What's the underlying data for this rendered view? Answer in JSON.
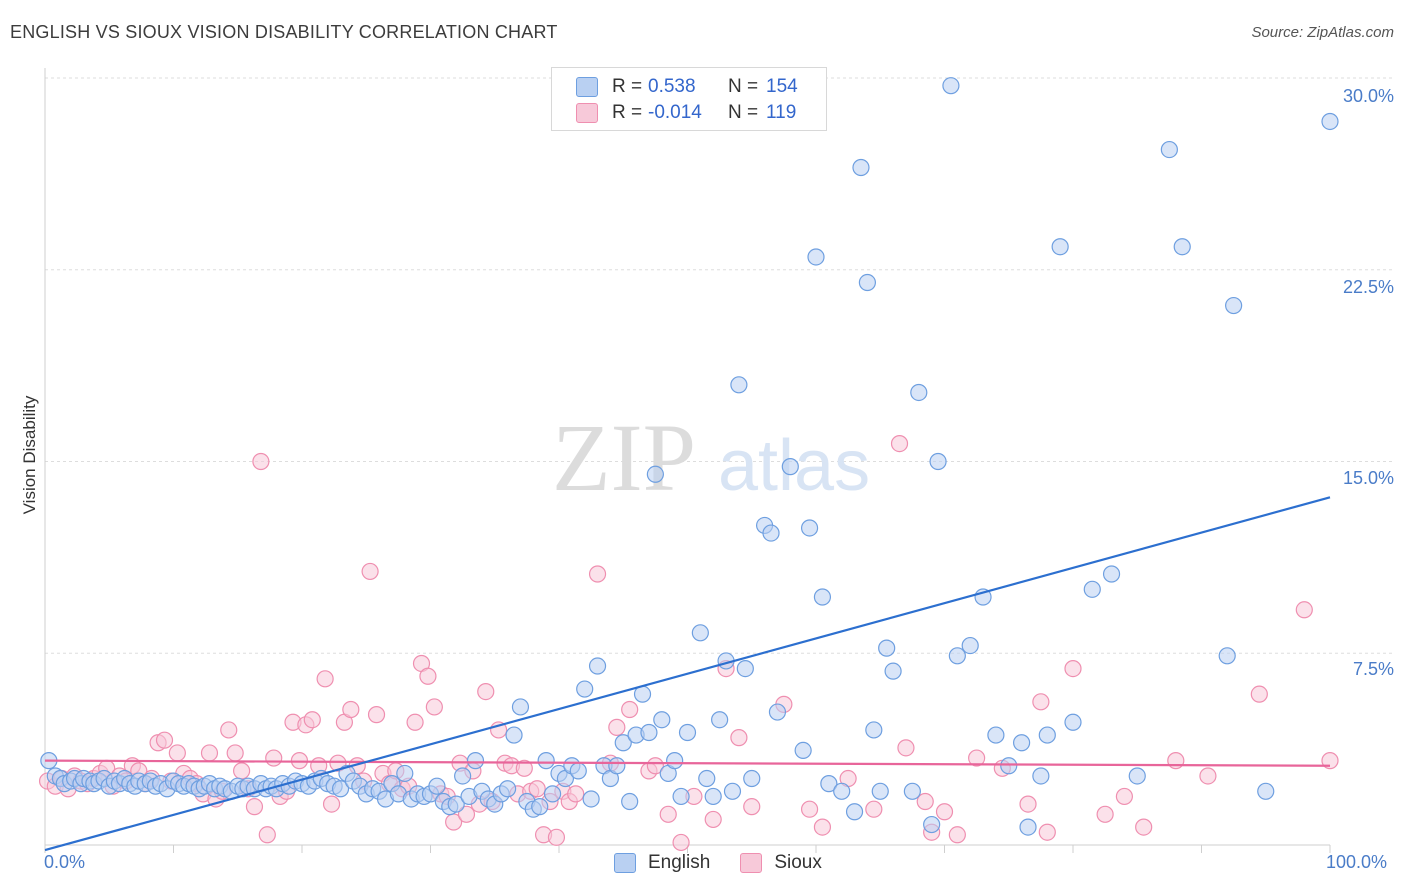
{
  "title": "ENGLISH VS SIOUX VISION DISABILITY CORRELATION CHART",
  "source": "Source: ZipAtlas.com",
  "watermark": {
    "part1": "ZIP",
    "part2": "atlas"
  },
  "legend_top": [
    {
      "r_label": "R =",
      "r_value": "0.538",
      "n_label": "N =",
      "n_value": "154"
    },
    {
      "r_label": "R =",
      "r_value": "-0.014",
      "n_label": "N =",
      "n_value": "119"
    }
  ],
  "colors": {
    "english": "#6e9fe0",
    "english_fill": "#b9d0f2",
    "sioux": "#ef8fb0",
    "sioux_fill": "#f7c9d9",
    "english_line": "#2c6fcf",
    "sioux_line": "#e8659a",
    "tick_label": "#4a7cc8"
  },
  "chart_data": {
    "type": "scatter",
    "xlabel": "",
    "ylabel": "Vision Disability",
    "xlim": [
      0,
      100
    ],
    "ylim": [
      0,
      30
    ],
    "x_tick_labels": [
      "0.0%",
      "100.0%"
    ],
    "y_tick_labels": [
      "7.5%",
      "15.0%",
      "22.5%",
      "30.0%"
    ],
    "y_ticks": [
      7.5,
      15.0,
      22.5,
      30.0
    ],
    "series": [
      {
        "name": "English",
        "trend": {
          "x": [
            0,
            100
          ],
          "y": [
            -0.2,
            13.6
          ]
        },
        "points": [
          [
            0.3,
            3.3
          ],
          [
            0.8,
            2.7
          ],
          [
            1.2,
            2.6
          ],
          [
            1.5,
            2.4
          ],
          [
            2.0,
            2.5
          ],
          [
            2.3,
            2.6
          ],
          [
            2.8,
            2.4
          ],
          [
            3.0,
            2.6
          ],
          [
            3.5,
            2.5
          ],
          [
            3.8,
            2.4
          ],
          [
            4.2,
            2.5
          ],
          [
            4.6,
            2.6
          ],
          [
            5.0,
            2.3
          ],
          [
            5.4,
            2.5
          ],
          [
            5.8,
            2.4
          ],
          [
            6.2,
            2.6
          ],
          [
            6.6,
            2.4
          ],
          [
            7.0,
            2.3
          ],
          [
            7.3,
            2.5
          ],
          [
            7.8,
            2.4
          ],
          [
            8.2,
            2.5
          ],
          [
            8.6,
            2.3
          ],
          [
            9.0,
            2.4
          ],
          [
            9.5,
            2.2
          ],
          [
            10.0,
            2.5
          ],
          [
            10.4,
            2.4
          ],
          [
            10.8,
            2.3
          ],
          [
            11.2,
            2.4
          ],
          [
            11.6,
            2.3
          ],
          [
            12.0,
            2.2
          ],
          [
            12.4,
            2.3
          ],
          [
            12.8,
            2.4
          ],
          [
            13.2,
            2.2
          ],
          [
            13.6,
            2.3
          ],
          [
            14.0,
            2.2
          ],
          [
            14.5,
            2.1
          ],
          [
            15.0,
            2.3
          ],
          [
            15.4,
            2.2
          ],
          [
            15.8,
            2.3
          ],
          [
            16.3,
            2.2
          ],
          [
            16.8,
            2.4
          ],
          [
            17.2,
            2.2
          ],
          [
            17.6,
            2.3
          ],
          [
            18.0,
            2.2
          ],
          [
            18.5,
            2.4
          ],
          [
            19.0,
            2.3
          ],
          [
            19.5,
            2.5
          ],
          [
            20.0,
            2.4
          ],
          [
            20.5,
            2.3
          ],
          [
            21.0,
            2.5
          ],
          [
            21.5,
            2.6
          ],
          [
            22.0,
            2.4
          ],
          [
            22.5,
            2.3
          ],
          [
            23.0,
            2.2
          ],
          [
            23.5,
            2.8
          ],
          [
            24.0,
            2.5
          ],
          [
            24.5,
            2.3
          ],
          [
            25.0,
            2.0
          ],
          [
            25.5,
            2.2
          ],
          [
            26.0,
            2.1
          ],
          [
            26.5,
            1.8
          ],
          [
            27.0,
            2.4
          ],
          [
            27.5,
            2.0
          ],
          [
            28.0,
            2.8
          ],
          [
            28.5,
            1.8
          ],
          [
            29.0,
            2.0
          ],
          [
            29.5,
            1.9
          ],
          [
            30.0,
            2.0
          ],
          [
            30.5,
            2.3
          ],
          [
            31.0,
            1.7
          ],
          [
            31.5,
            1.5
          ],
          [
            32.0,
            1.6
          ],
          [
            32.5,
            2.7
          ],
          [
            33.0,
            1.9
          ],
          [
            33.5,
            3.3
          ],
          [
            34.0,
            2.1
          ],
          [
            34.5,
            1.8
          ],
          [
            35.0,
            1.6
          ],
          [
            35.5,
            2.0
          ],
          [
            36.0,
            2.2
          ],
          [
            36.5,
            4.3
          ],
          [
            37.0,
            5.4
          ],
          [
            37.5,
            1.7
          ],
          [
            38.0,
            1.4
          ],
          [
            38.5,
            1.5
          ],
          [
            39.0,
            3.3
          ],
          [
            39.5,
            2.0
          ],
          [
            40.0,
            2.8
          ],
          [
            40.5,
            2.6
          ],
          [
            41.0,
            3.1
          ],
          [
            41.5,
            2.9
          ],
          [
            42.0,
            6.1
          ],
          [
            42.5,
            1.8
          ],
          [
            43.0,
            7.0
          ],
          [
            43.5,
            3.1
          ],
          [
            44.0,
            2.6
          ],
          [
            44.5,
            3.1
          ],
          [
            45.0,
            4.0
          ],
          [
            45.5,
            1.7
          ],
          [
            46.0,
            4.3
          ],
          [
            46.5,
            5.9
          ],
          [
            47.0,
            4.4
          ],
          [
            47.5,
            14.5
          ],
          [
            48.0,
            4.9
          ],
          [
            48.5,
            2.8
          ],
          [
            49.0,
            3.3
          ],
          [
            49.5,
            1.9
          ],
          [
            50.0,
            4.4
          ],
          [
            51.0,
            8.3
          ],
          [
            51.5,
            2.6
          ],
          [
            52.0,
            1.9
          ],
          [
            52.5,
            4.9
          ],
          [
            53.0,
            7.2
          ],
          [
            53.5,
            2.1
          ],
          [
            54.0,
            18.0
          ],
          [
            54.5,
            6.9
          ],
          [
            55.0,
            2.6
          ],
          [
            56.0,
            12.5
          ],
          [
            56.5,
            12.2
          ],
          [
            57.0,
            5.2
          ],
          [
            58.0,
            14.8
          ],
          [
            59.0,
            3.7
          ],
          [
            59.5,
            12.4
          ],
          [
            60.0,
            23.0
          ],
          [
            60.5,
            9.7
          ],
          [
            61.0,
            2.4
          ],
          [
            62.0,
            2.1
          ],
          [
            63.0,
            1.3
          ],
          [
            63.5,
            26.5
          ],
          [
            64.0,
            22.0
          ],
          [
            64.5,
            4.5
          ],
          [
            65.0,
            2.1
          ],
          [
            65.5,
            7.7
          ],
          [
            66.0,
            6.8
          ],
          [
            67.5,
            2.1
          ],
          [
            68.0,
            17.7
          ],
          [
            69.0,
            0.8
          ],
          [
            69.5,
            15.0
          ],
          [
            70.5,
            29.7
          ],
          [
            71.0,
            7.4
          ],
          [
            72.0,
            7.8
          ],
          [
            73.0,
            9.7
          ],
          [
            74.0,
            4.3
          ],
          [
            75.0,
            3.1
          ],
          [
            76.0,
            4.0
          ],
          [
            76.5,
            0.7
          ],
          [
            77.5,
            2.7
          ],
          [
            78.0,
            4.3
          ],
          [
            79.0,
            23.4
          ],
          [
            80.0,
            4.8
          ],
          [
            81.5,
            10.0
          ],
          [
            83.0,
            10.6
          ],
          [
            85.0,
            2.7
          ],
          [
            87.5,
            27.2
          ],
          [
            88.5,
            23.4
          ],
          [
            92.0,
            7.4
          ],
          [
            92.5,
            21.1
          ],
          [
            95.0,
            2.1
          ],
          [
            100.0,
            28.3
          ]
        ]
      },
      {
        "name": "Sioux",
        "trend": {
          "x": [
            0,
            100
          ],
          "y": [
            3.3,
            3.1
          ]
        },
        "points": [
          [
            0.2,
            2.5
          ],
          [
            0.8,
            2.3
          ],
          [
            1.3,
            2.6
          ],
          [
            1.8,
            2.2
          ],
          [
            2.3,
            2.7
          ],
          [
            2.8,
            2.5
          ],
          [
            3.3,
            2.4
          ],
          [
            3.8,
            2.6
          ],
          [
            4.3,
            2.8
          ],
          [
            4.8,
            3.0
          ],
          [
            5.3,
            2.3
          ],
          [
            5.8,
            2.7
          ],
          [
            6.3,
            2.5
          ],
          [
            6.8,
            3.1
          ],
          [
            7.3,
            2.9
          ],
          [
            7.8,
            2.4
          ],
          [
            8.3,
            2.6
          ],
          [
            8.8,
            4.0
          ],
          [
            9.3,
            4.1
          ],
          [
            9.8,
            2.5
          ],
          [
            10.3,
            3.6
          ],
          [
            10.8,
            2.8
          ],
          [
            11.3,
            2.6
          ],
          [
            11.8,
            2.4
          ],
          [
            12.3,
            2.0
          ],
          [
            12.8,
            3.6
          ],
          [
            13.3,
            1.8
          ],
          [
            13.8,
            2.1
          ],
          [
            14.3,
            4.5
          ],
          [
            14.8,
            3.6
          ],
          [
            15.3,
            2.9
          ],
          [
            15.8,
            2.2
          ],
          [
            16.3,
            1.5
          ],
          [
            16.8,
            15.0
          ],
          [
            17.3,
            0.4
          ],
          [
            17.8,
            3.4
          ],
          [
            18.3,
            1.9
          ],
          [
            18.8,
            2.1
          ],
          [
            19.3,
            4.8
          ],
          [
            19.8,
            3.3
          ],
          [
            20.3,
            4.7
          ],
          [
            20.8,
            4.9
          ],
          [
            21.3,
            3.1
          ],
          [
            21.8,
            6.5
          ],
          [
            22.3,
            1.6
          ],
          [
            22.8,
            3.2
          ],
          [
            23.3,
            4.8
          ],
          [
            23.8,
            5.3
          ],
          [
            24.3,
            3.1
          ],
          [
            24.8,
            2.5
          ],
          [
            25.3,
            10.7
          ],
          [
            25.8,
            5.1
          ],
          [
            26.3,
            2.8
          ],
          [
            26.8,
            2.4
          ],
          [
            27.3,
            2.9
          ],
          [
            27.8,
            2.2
          ],
          [
            28.3,
            2.3
          ],
          [
            28.8,
            4.8
          ],
          [
            29.3,
            7.1
          ],
          [
            29.8,
            6.6
          ],
          [
            30.3,
            5.4
          ],
          [
            30.8,
            2.0
          ],
          [
            31.3,
            1.9
          ],
          [
            31.8,
            0.9
          ],
          [
            32.3,
            3.2
          ],
          [
            32.8,
            1.2
          ],
          [
            33.3,
            2.9
          ],
          [
            33.8,
            1.6
          ],
          [
            34.3,
            6.0
          ],
          [
            34.8,
            1.7
          ],
          [
            35.3,
            4.5
          ],
          [
            35.8,
            3.2
          ],
          [
            36.3,
            3.1
          ],
          [
            36.8,
            2.0
          ],
          [
            37.3,
            3.0
          ],
          [
            37.8,
            2.1
          ],
          [
            38.3,
            2.2
          ],
          [
            38.8,
            0.4
          ],
          [
            39.3,
            1.7
          ],
          [
            39.8,
            0.3
          ],
          [
            40.3,
            2.1
          ],
          [
            40.8,
            1.7
          ],
          [
            41.3,
            2.0
          ],
          [
            43.0,
            10.6
          ],
          [
            44.0,
            3.2
          ],
          [
            44.5,
            4.6
          ],
          [
            45.5,
            5.3
          ],
          [
            47.0,
            2.9
          ],
          [
            47.5,
            3.1
          ],
          [
            48.5,
            1.2
          ],
          [
            49.5,
            0.1
          ],
          [
            50.5,
            1.9
          ],
          [
            52.0,
            1.0
          ],
          [
            53.0,
            6.9
          ],
          [
            54.0,
            4.2
          ],
          [
            55.0,
            1.5
          ],
          [
            57.5,
            5.5
          ],
          [
            59.5,
            1.4
          ],
          [
            60.5,
            0.7
          ],
          [
            62.5,
            2.6
          ],
          [
            64.5,
            1.4
          ],
          [
            66.5,
            15.7
          ],
          [
            67.0,
            3.8
          ],
          [
            68.5,
            1.7
          ],
          [
            69.0,
            0.5
          ],
          [
            70.0,
            1.3
          ],
          [
            71.0,
            0.4
          ],
          [
            72.5,
            3.4
          ],
          [
            74.5,
            3.0
          ],
          [
            76.5,
            1.6
          ],
          [
            77.5,
            5.6
          ],
          [
            78.0,
            0.5
          ],
          [
            80.0,
            6.9
          ],
          [
            82.5,
            1.2
          ],
          [
            84.0,
            1.9
          ],
          [
            85.5,
            0.7
          ],
          [
            88.0,
            3.3
          ],
          [
            90.5,
            2.7
          ],
          [
            94.5,
            5.9
          ],
          [
            98.0,
            9.2
          ],
          [
            100.0,
            3.3
          ]
        ]
      }
    ]
  }
}
